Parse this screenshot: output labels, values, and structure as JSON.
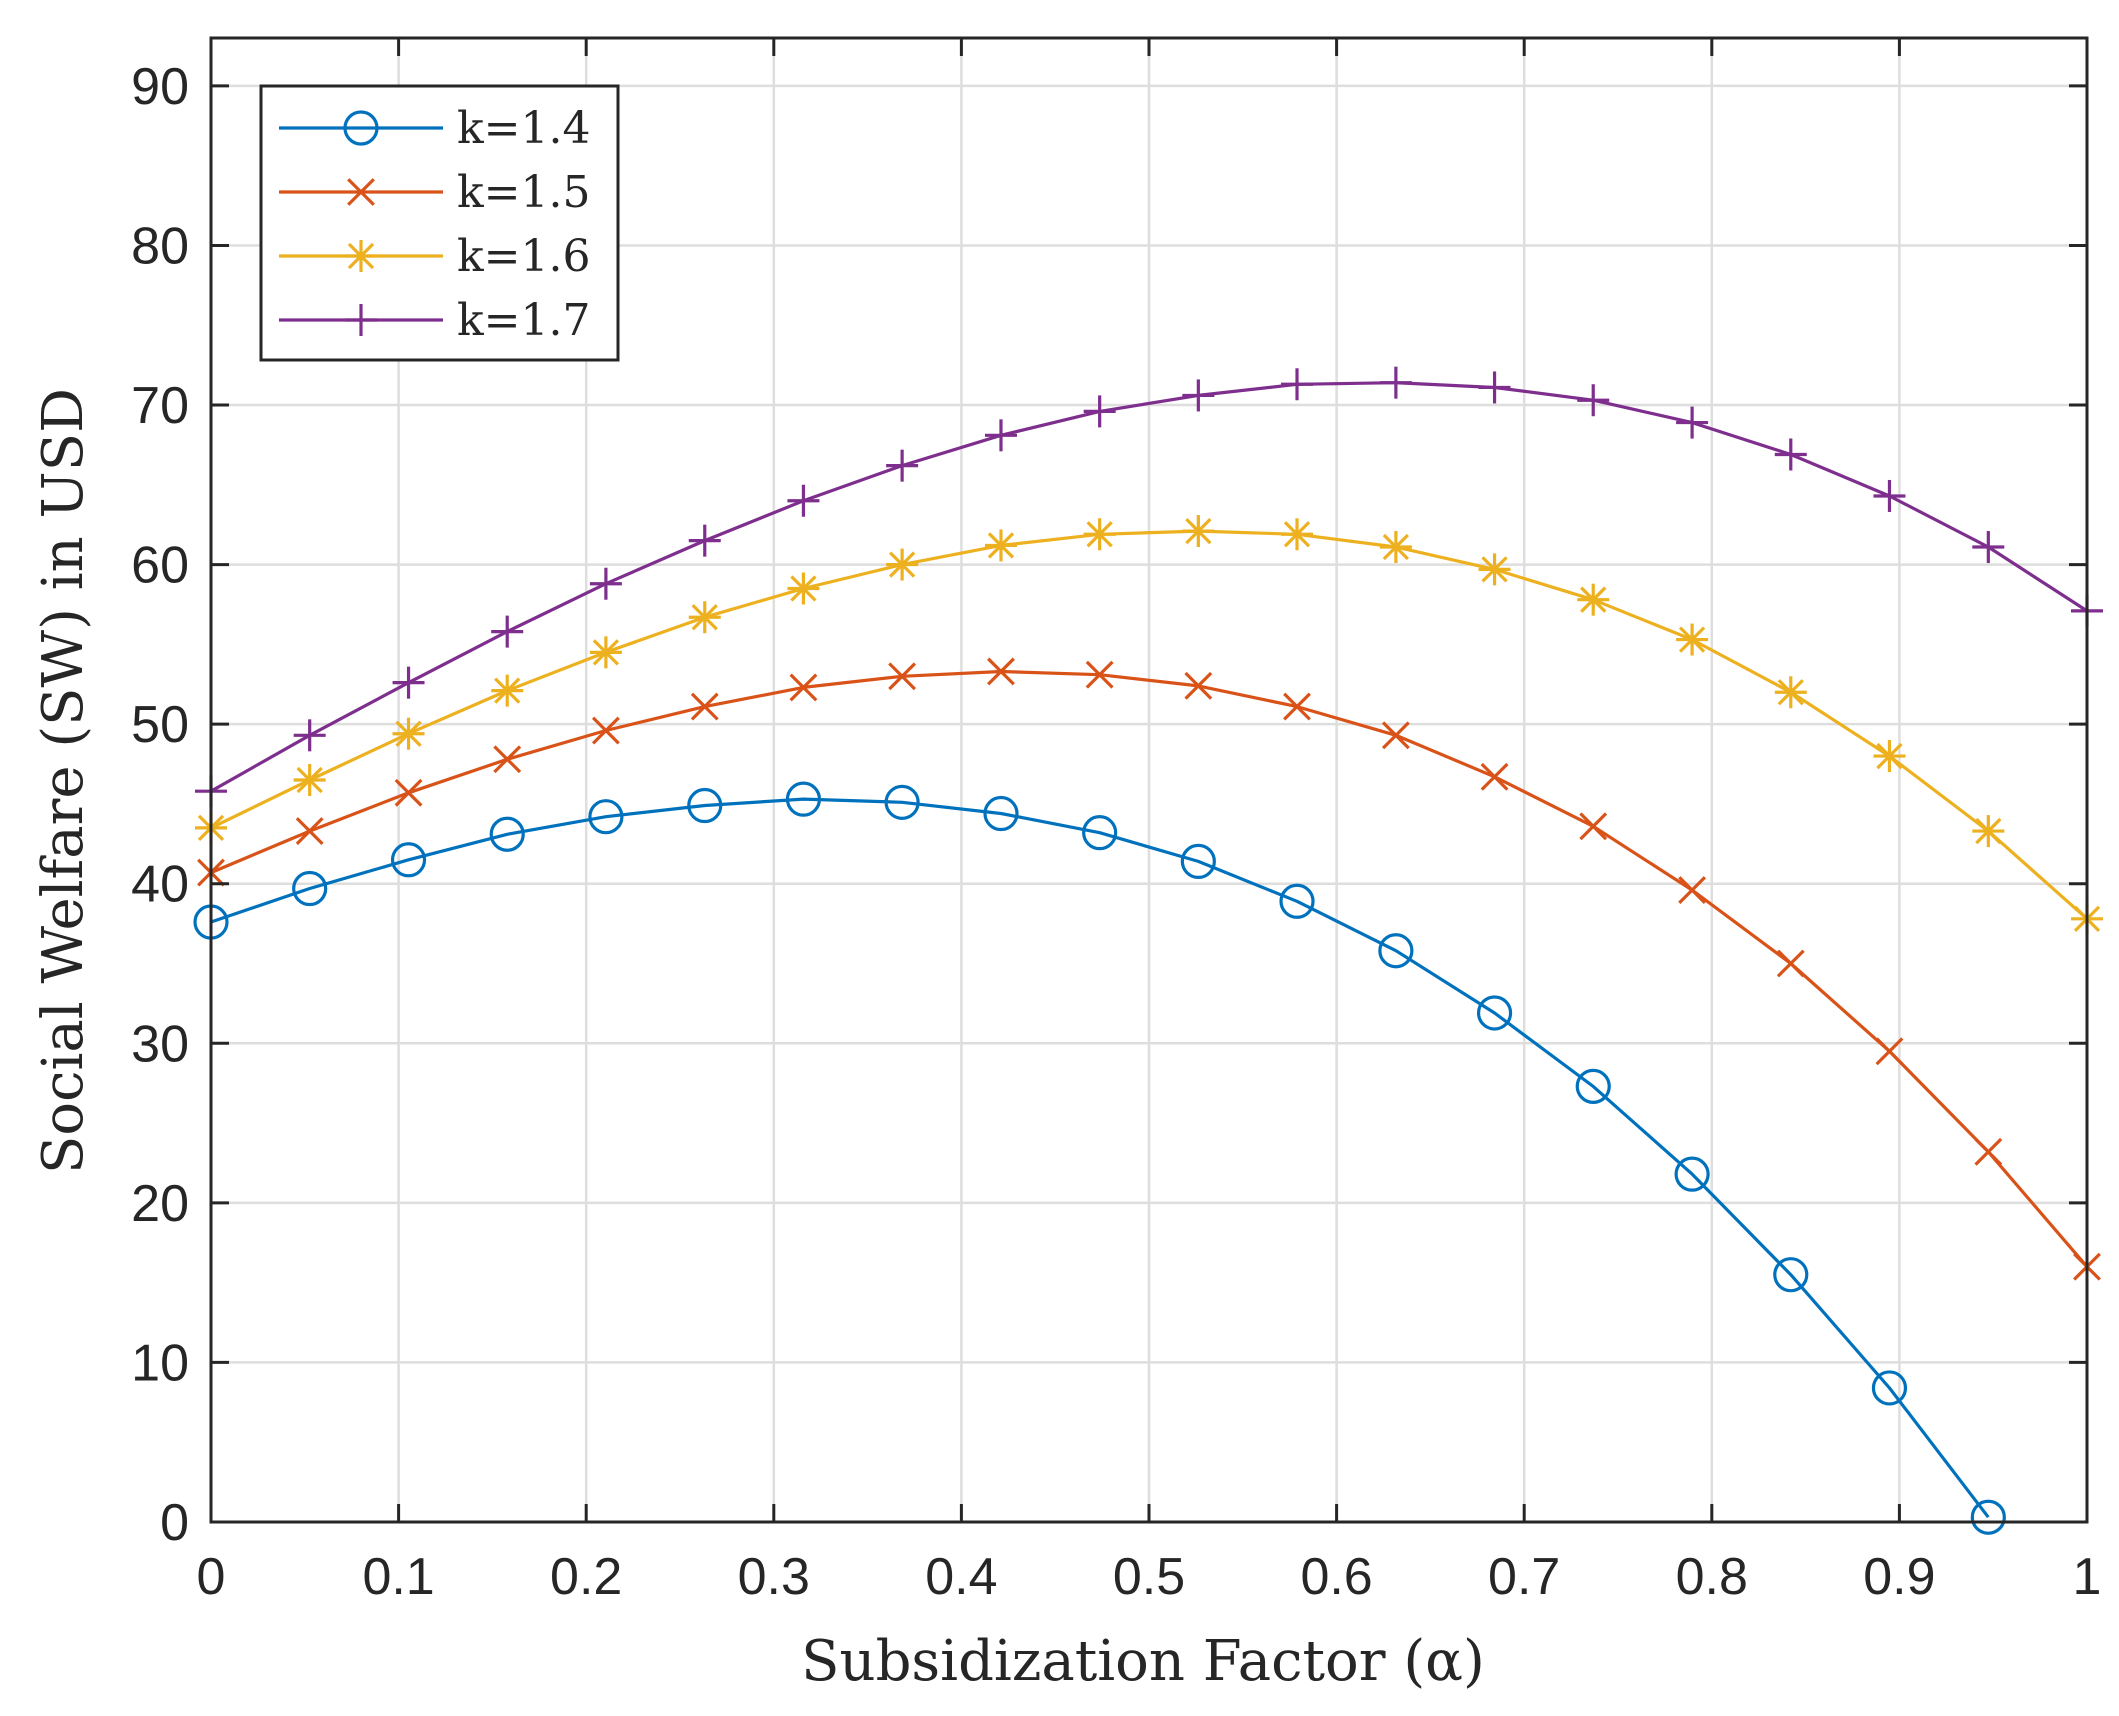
{
  "chart_data": {
    "type": "line",
    "xlabel": "Subsidization Factor (α)",
    "ylabel": "Social Welfare (SW) in USD",
    "xlim": [
      0,
      1
    ],
    "ylim": [
      0,
      93
    ],
    "xticks": [
      0,
      0.1,
      0.2,
      0.3,
      0.4,
      0.5,
      0.6,
      0.7,
      0.8,
      0.9,
      1
    ],
    "xtick_labels": [
      "0",
      "0.1",
      "0.2",
      "0.3",
      "0.4",
      "0.5",
      "0.6",
      "0.7",
      "0.8",
      "0.9",
      "1"
    ],
    "yticks": [
      0,
      10,
      20,
      30,
      40,
      50,
      60,
      70,
      80,
      90
    ],
    "ytick_labels": [
      "0",
      "10",
      "20",
      "30",
      "40",
      "50",
      "60",
      "70",
      "80",
      "90"
    ],
    "grid": true,
    "legend_position": "top-left",
    "x": [
      0,
      0.0526,
      0.1053,
      0.1579,
      0.2105,
      0.2632,
      0.3158,
      0.3684,
      0.4211,
      0.4737,
      0.5263,
      0.5789,
      0.6316,
      0.6842,
      0.7368,
      0.7895,
      0.8421,
      0.8947,
      0.9474,
      1.0
    ],
    "series": [
      {
        "name": "k=1.4",
        "color": "#0072BD",
        "marker": "circle",
        "values": [
          37.6,
          39.7,
          41.5,
          43.1,
          44.2,
          44.9,
          45.3,
          45.1,
          44.4,
          43.2,
          41.4,
          38.9,
          35.8,
          31.9,
          27.3,
          21.8,
          15.5,
          8.4,
          0.3,
          null
        ]
      },
      {
        "name": "k=1.5",
        "color": "#D95319",
        "marker": "x",
        "values": [
          40.7,
          43.3,
          45.7,
          47.8,
          49.6,
          51.1,
          52.3,
          53.0,
          53.3,
          53.1,
          52.4,
          51.1,
          49.3,
          46.7,
          43.6,
          39.6,
          35.0,
          29.5,
          23.2,
          16.0
        ]
      },
      {
        "name": "k=1.6",
        "color": "#EDB120",
        "marker": "asterisk",
        "values": [
          43.5,
          46.5,
          49.4,
          52.1,
          54.5,
          56.7,
          58.5,
          60.0,
          61.2,
          61.9,
          62.1,
          61.9,
          61.1,
          59.7,
          57.8,
          55.3,
          52.0,
          48.0,
          43.3,
          37.8
        ]
      },
      {
        "name": "k=1.7",
        "color": "#7E2F8E",
        "marker": "plus",
        "values": [
          45.8,
          49.3,
          52.6,
          55.8,
          58.8,
          61.5,
          64.0,
          66.2,
          68.1,
          69.6,
          70.6,
          71.3,
          71.4,
          71.1,
          70.3,
          68.9,
          66.9,
          64.3,
          61.1,
          57.1
        ]
      }
    ]
  }
}
